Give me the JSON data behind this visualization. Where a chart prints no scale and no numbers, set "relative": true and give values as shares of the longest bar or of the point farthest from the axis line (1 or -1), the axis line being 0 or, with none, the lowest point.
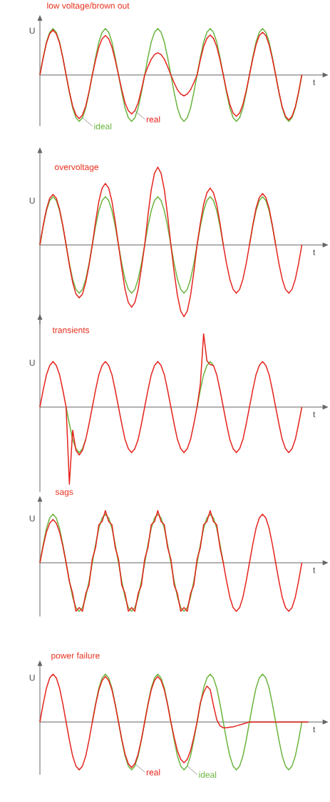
{
  "chart_data": [
    {
      "type": "line",
      "title": "low voltage/brown out",
      "xlabel": "t",
      "ylabel": "U",
      "relative": true,
      "categories": [
        null,
        null,
        null,
        null,
        null,
        null,
        null,
        null,
        null,
        null,
        null,
        null,
        null,
        null,
        null,
        null,
        null,
        null,
        null,
        null,
        null,
        null,
        null,
        null,
        null,
        null,
        null,
        null,
        null,
        null,
        null,
        null,
        null,
        null,
        null,
        null,
        null,
        null,
        null,
        null,
        null,
        null,
        null,
        null,
        null,
        null,
        null,
        null,
        null,
        null,
        null,
        null,
        null,
        null,
        null,
        null,
        null,
        null,
        null,
        null,
        null,
        null,
        null,
        null,
        null,
        null,
        null,
        null,
        null,
        null,
        null,
        null,
        null,
        null,
        null,
        null,
        null,
        null,
        null,
        null,
        null
      ],
      "series": [
        {
          "name": "ideal",
          "color": "#6ab43e",
          "values": [
            0,
            0.38,
            0.71,
            0.92,
            1,
            0.92,
            0.71,
            0.38,
            0,
            -0.38,
            -0.71,
            -0.92,
            -1,
            -0.92,
            -0.71,
            -0.38,
            0,
            0.38,
            0.71,
            0.92,
            1,
            0.92,
            0.71,
            0.38,
            0,
            -0.38,
            -0.71,
            -0.92,
            -1,
            -0.92,
            -0.71,
            -0.38,
            0,
            0.38,
            0.71,
            0.92,
            1,
            0.92,
            0.71,
            0.38,
            0,
            -0.38,
            -0.71,
            -0.92,
            -1,
            -0.92,
            -0.71,
            -0.38,
            0,
            0.38,
            0.71,
            0.92,
            1,
            0.92,
            0.71,
            0.38,
            0,
            -0.38,
            -0.71,
            -0.92,
            -1,
            -0.92,
            -0.71,
            -0.38,
            0,
            0.38,
            0.71,
            0.92,
            1,
            0.92,
            0.71,
            0.38,
            0,
            -0.38,
            -0.71,
            -0.92,
            -1,
            -0.92,
            -0.71,
            -0.38,
            0
          ]
        },
        {
          "name": "real",
          "color": "#e5241d",
          "values": [
            0,
            0.37,
            0.69,
            0.89,
            0.97,
            0.89,
            0.69,
            0.37,
            0,
            -0.36,
            -0.67,
            -0.86,
            -0.94,
            -0.86,
            -0.67,
            -0.36,
            0,
            0.32,
            0.6,
            0.78,
            0.85,
            0.78,
            0.6,
            0.32,
            0,
            -0.32,
            -0.6,
            -0.77,
            -0.84,
            -0.77,
            -0.6,
            -0.32,
            0,
            0.18,
            0.34,
            0.44,
            0.48,
            0.44,
            0.34,
            0.18,
            0,
            -0.17,
            -0.32,
            -0.41,
            -0.45,
            -0.41,
            -0.32,
            -0.17,
            0,
            0.33,
            0.61,
            0.79,
            0.86,
            0.79,
            0.61,
            0.33,
            0,
            -0.34,
            -0.63,
            -0.82,
            -0.89,
            -0.82,
            -0.63,
            -0.34,
            0,
            0.35,
            0.65,
            0.85,
            0.92,
            0.85,
            0.65,
            0.35,
            0,
            -0.37,
            -0.69,
            -0.89,
            -0.97,
            -0.89,
            -0.69,
            -0.37,
            0
          ]
        }
      ]
    },
    {
      "type": "line",
      "title": "overvoltage",
      "xlabel": "t",
      "ylabel": "U",
      "relative": true,
      "categories": [
        null,
        null,
        null,
        null,
        null,
        null,
        null,
        null,
        null,
        null,
        null,
        null,
        null,
        null,
        null,
        null,
        null,
        null,
        null,
        null,
        null,
        null,
        null,
        null,
        null,
        null,
        null,
        null,
        null,
        null,
        null,
        null,
        null,
        null,
        null,
        null,
        null,
        null,
        null,
        null,
        null,
        null,
        null,
        null,
        null,
        null,
        null,
        null,
        null,
        null,
        null,
        null,
        null,
        null,
        null,
        null,
        null,
        null,
        null,
        null,
        null,
        null,
        null,
        null,
        null,
        null,
        null,
        null,
        null,
        null,
        null,
        null,
        null,
        null,
        null,
        null,
        null,
        null,
        null,
        null,
        null
      ],
      "series": [
        {
          "color": "#6ab43e",
          "values": [
            0,
            0.24,
            0.44,
            0.57,
            0.62,
            0.57,
            0.44,
            0.24,
            0,
            -0.24,
            -0.44,
            -0.57,
            -0.62,
            -0.57,
            -0.44,
            -0.24,
            0,
            0.24,
            0.44,
            0.57,
            0.62,
            0.57,
            0.44,
            0.24,
            0,
            -0.24,
            -0.44,
            -0.57,
            -0.62,
            -0.57,
            -0.44,
            -0.24,
            0,
            0.24,
            0.44,
            0.57,
            0.62,
            0.57,
            0.44,
            0.24,
            0,
            -0.24,
            -0.44,
            -0.57,
            -0.62,
            -0.57,
            -0.44,
            -0.24,
            0,
            0.24,
            0.44,
            0.57,
            0.62,
            0.57,
            0.44,
            0.24,
            0,
            null,
            null,
            null,
            null,
            null,
            null,
            null,
            0,
            0.24,
            0.44,
            0.57,
            0.62,
            0.57,
            0.44,
            0.24,
            0,
            null,
            null,
            null,
            null,
            null,
            null,
            null,
            null
          ]
        },
        {
          "color": "#e5241d",
          "values": [
            0,
            0.25,
            0.46,
            0.6,
            0.65,
            0.6,
            0.46,
            0.25,
            0,
            -0.26,
            -0.48,
            -0.63,
            -0.68,
            -0.63,
            -0.48,
            -0.26,
            0,
            0.3,
            0.56,
            0.73,
            0.79,
            0.73,
            0.56,
            0.3,
            0,
            -0.3,
            -0.57,
            -0.74,
            -0.8,
            -0.74,
            -0.57,
            -0.3,
            0,
            0.38,
            0.71,
            0.92,
            1,
            0.92,
            0.71,
            0.38,
            0,
            -0.35,
            -0.65,
            -0.85,
            -0.92,
            -0.85,
            -0.65,
            -0.35,
            0,
            0.28,
            0.52,
            0.67,
            0.73,
            0.67,
            0.52,
            0.28,
            0,
            -0.24,
            -0.44,
            -0.57,
            -0.62,
            -0.57,
            -0.44,
            -0.24,
            0,
            0.25,
            0.47,
            0.61,
            0.66,
            0.61,
            0.47,
            0.25,
            0,
            -0.24,
            -0.44,
            -0.57,
            -0.62,
            -0.57,
            -0.44,
            -0.24,
            0
          ]
        }
      ]
    },
    {
      "type": "line",
      "title": "transients",
      "xlabel": "t",
      "ylabel": "U",
      "relative": true,
      "categories": [
        null,
        null,
        null,
        null,
        null,
        null,
        null,
        null,
        null,
        null,
        null,
        null,
        null,
        null,
        null,
        null,
        null,
        null,
        null,
        null,
        null,
        null,
        null,
        null,
        null,
        null,
        null,
        null,
        null,
        null,
        null,
        null,
        null,
        null,
        null,
        null,
        null,
        null,
        null,
        null,
        null,
        null,
        null,
        null,
        null,
        null,
        null,
        null,
        null,
        null,
        null,
        null,
        null,
        null,
        null,
        null,
        null,
        null,
        null,
        null,
        null,
        null,
        null,
        null,
        null,
        null,
        null,
        null,
        null,
        null,
        null,
        null,
        null,
        null,
        null,
        null,
        null,
        null,
        null,
        null,
        null
      ],
      "series": [
        {
          "color": "#6ab43e",
          "values": [
            null,
            null,
            null,
            null,
            null,
            null,
            null,
            null,
            0,
            -0.22,
            -0.42,
            -0.54,
            -0.59,
            -0.54,
            -0.42,
            null,
            null,
            null,
            null,
            null,
            null,
            null,
            null,
            null,
            null,
            null,
            null,
            null,
            null,
            null,
            null,
            null,
            null,
            null,
            null,
            null,
            null,
            null,
            null,
            null,
            null,
            null,
            null,
            null,
            null,
            null,
            null,
            null,
            0,
            0.22,
            0.42,
            0.54,
            0.59,
            0.54,
            null,
            null,
            null,
            null,
            null,
            null,
            null,
            null,
            null,
            null,
            null,
            null,
            null,
            null,
            null,
            null,
            null,
            null,
            null,
            null,
            null,
            null,
            null,
            null,
            null,
            null,
            null
          ]
        },
        {
          "color": "#e5241d",
          "values": [
            0,
            0.22,
            0.42,
            0.54,
            0.59,
            0.54,
            0.42,
            0.22,
            0,
            -1,
            -0.3,
            -0.56,
            -0.62,
            -0.56,
            -0.42,
            -0.22,
            0,
            0.22,
            0.42,
            0.54,
            0.59,
            0.54,
            0.42,
            0.22,
            0,
            -0.22,
            -0.42,
            -0.54,
            -0.59,
            -0.54,
            -0.42,
            -0.22,
            0,
            0.22,
            0.42,
            0.54,
            0.59,
            0.54,
            0.42,
            0.22,
            0,
            -0.22,
            -0.42,
            -0.54,
            -0.59,
            -0.54,
            -0.42,
            -0.22,
            0,
            0.3,
            0.95,
            0.6,
            0.55,
            0.54,
            0.42,
            0.22,
            0,
            -0.22,
            -0.42,
            -0.54,
            -0.59,
            -0.54,
            -0.42,
            -0.22,
            0,
            0.22,
            0.42,
            0.54,
            0.59,
            0.54,
            0.42,
            0.22,
            0,
            -0.22,
            -0.42,
            -0.54,
            -0.59,
            -0.54,
            -0.42,
            -0.22,
            0
          ]
        }
      ]
    },
    {
      "type": "line",
      "title": "sags",
      "xlabel": "t",
      "ylabel": "U",
      "relative": true,
      "categories": [
        null,
        null,
        null,
        null,
        null,
        null,
        null,
        null,
        null,
        null,
        null,
        null,
        null,
        null,
        null,
        null,
        null,
        null,
        null,
        null,
        null,
        null,
        null,
        null,
        null,
        null,
        null,
        null,
        null,
        null,
        null,
        null,
        null,
        null,
        null,
        null,
        null,
        null,
        null,
        null,
        null,
        null,
        null,
        null,
        null,
        null,
        null,
        null,
        null,
        null,
        null,
        null,
        null,
        null,
        null,
        null,
        null,
        null,
        null,
        null,
        null,
        null,
        null,
        null,
        null,
        null,
        null,
        null,
        null,
        null,
        null,
        null,
        null,
        null,
        null,
        null,
        null,
        null,
        null,
        null,
        null
      ],
      "series": [
        {
          "color": "#6ab43e",
          "values": [
            0,
            0.35,
            0.66,
            0.86,
            0.93,
            0.86,
            0.66,
            0.35,
            0,
            -0.35,
            -0.66,
            -0.86,
            -0.93,
            -0.86,
            -0.66,
            -0.35,
            0,
            0.35,
            0.66,
            0.86,
            0.93,
            0.86,
            0.66,
            0.35,
            0,
            -0.35,
            -0.66,
            -0.86,
            -0.93,
            -0.86,
            -0.66,
            -0.35,
            0,
            0.35,
            0.66,
            0.86,
            0.93,
            0.86,
            0.66,
            0.35,
            0,
            -0.35,
            -0.66,
            -0.86,
            -0.93,
            -0.86,
            -0.66,
            -0.35,
            0,
            0.35,
            0.66,
            0.86,
            0.93,
            0.86,
            0.66,
            0.35,
            0,
            null,
            null,
            null,
            null,
            null,
            null,
            null,
            null,
            null,
            null,
            null,
            null,
            null,
            null,
            null,
            null,
            null,
            null,
            null,
            null,
            null,
            null,
            null,
            null
          ]
        },
        {
          "color": "#e5241d",
          "values": [
            0,
            0.32,
            0.59,
            0.76,
            0.83,
            0.76,
            0.59,
            0.32,
            0,
            -0.36,
            -0.59,
            -0.93,
            -0.86,
            -0.93,
            -0.59,
            -0.43,
            0.07,
            0.29,
            0.73,
            0.79,
            1,
            0.79,
            0.73,
            0.29,
            0.07,
            -0.43,
            -0.59,
            -0.93,
            -0.86,
            -0.93,
            -0.59,
            -0.43,
            0.07,
            0.29,
            0.73,
            0.79,
            1,
            0.79,
            0.73,
            0.29,
            0.07,
            -0.43,
            -0.59,
            -0.93,
            -0.86,
            -0.93,
            -0.59,
            -0.43,
            0.07,
            0.29,
            0.73,
            0.79,
            1,
            0.79,
            0.73,
            0.29,
            0,
            -0.35,
            -0.66,
            -0.86,
            -0.93,
            -0.86,
            -0.66,
            -0.35,
            0,
            0.35,
            0.66,
            0.86,
            0.93,
            0.86,
            0.66,
            0.35,
            0,
            -0.35,
            -0.66,
            -0.86,
            -0.93,
            -0.86,
            -0.66,
            -0.35,
            0
          ]
        }
      ]
    },
    {
      "type": "line",
      "title": "power failure",
      "xlabel": "t",
      "ylabel": "U",
      "relative": true,
      "categories": [
        null,
        null,
        null,
        null,
        null,
        null,
        null,
        null,
        null,
        null,
        null,
        null,
        null,
        null,
        null,
        null,
        null,
        null,
        null,
        null,
        null,
        null,
        null,
        null,
        null,
        null,
        null,
        null,
        null,
        null,
        null,
        null,
        null,
        null,
        null,
        null,
        null,
        null,
        null,
        null,
        null,
        null,
        null,
        null,
        null,
        null,
        null,
        null,
        null,
        null,
        null,
        null,
        null,
        null,
        null,
        null,
        null,
        null,
        null,
        null,
        null,
        null,
        null,
        null,
        null,
        null,
        null,
        null,
        null,
        null,
        null,
        null,
        null,
        null,
        null,
        null,
        null,
        null,
        null,
        null,
        null,
        null,
        null
      ],
      "series": [
        {
          "name": "ideal",
          "color": "#6ab43e",
          "values": [
            null,
            null,
            null,
            null,
            null,
            null,
            null,
            null,
            null,
            null,
            null,
            null,
            null,
            null,
            null,
            null,
            0,
            0.38,
            0.71,
            0.92,
            1,
            0.92,
            0.71,
            0.38,
            0,
            -0.38,
            -0.71,
            -0.92,
            -1,
            -0.92,
            -0.71,
            -0.38,
            0,
            0.38,
            0.71,
            0.92,
            1,
            0.92,
            0.71,
            0.38,
            0,
            -0.38,
            -0.71,
            -0.92,
            -1,
            -0.92,
            -0.71,
            -0.38,
            0,
            0.38,
            0.71,
            0.92,
            1,
            0.92,
            0.71,
            0.38,
            0,
            -0.38,
            -0.71,
            -0.92,
            -1,
            -0.92,
            -0.71,
            -0.38,
            0,
            0.38,
            0.71,
            0.92,
            1,
            0.92,
            0.71,
            0.38,
            0,
            -0.38,
            -0.71,
            -0.92,
            -1,
            -0.92,
            -0.71,
            -0.38,
            0,
            null,
            null
          ]
        },
        {
          "name": "real",
          "color": "#e5241d",
          "values": [
            0,
            0.38,
            0.71,
            0.92,
            1,
            0.92,
            0.71,
            0.38,
            0,
            -0.38,
            -0.71,
            -0.92,
            -1,
            -0.92,
            -0.71,
            -0.38,
            0,
            0.36,
            0.67,
            0.87,
            0.95,
            0.87,
            0.67,
            0.36,
            0,
            -0.36,
            -0.67,
            -0.87,
            -0.95,
            -0.87,
            -0.67,
            -0.36,
            0,
            0.36,
            0.67,
            0.87,
            0.95,
            0.87,
            0.67,
            0.36,
            0,
            -0.32,
            -0.6,
            -0.78,
            -0.85,
            -0.78,
            -0.6,
            -0.32,
            0,
            0.4,
            0.62,
            0.75,
            0.68,
            0.35,
            0.05,
            -0.08,
            -0.12,
            -0.12,
            -0.11,
            -0.1,
            -0.08,
            -0.06,
            -0.04,
            -0.02,
            0,
            0,
            0,
            0,
            0,
            0,
            0,
            0,
            0,
            0,
            0,
            0,
            0,
            0,
            0,
            0,
            0,
            0,
            0
          ]
        }
      ]
    }
  ]
}
